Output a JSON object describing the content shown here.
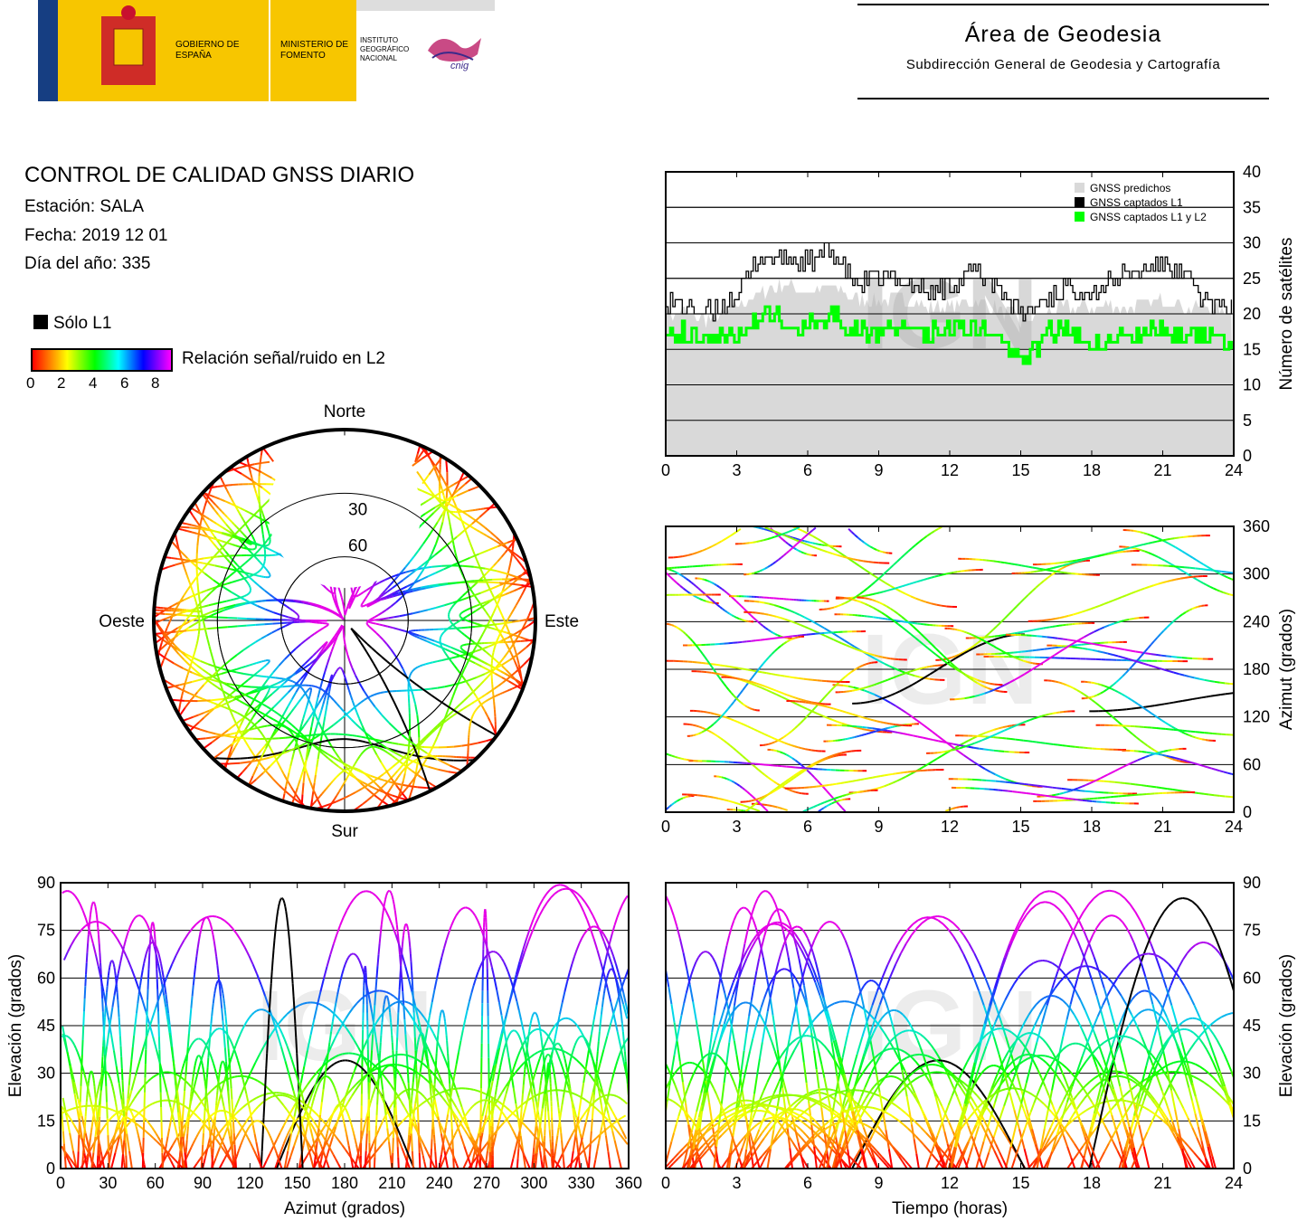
{
  "header": {
    "logo_gov": "GOBIERNO DE ESPAÑA",
    "logo_min": "MINISTERIO DE FOMENTO",
    "logo_ign": "INSTITUTO GEOGRÁFICO NACIONAL",
    "logo_cnig": "cnig",
    "title": "Área de Geodesia",
    "subtitle": "Subdirección General de Geodesia y Cartografía"
  },
  "report": {
    "title": "CONTROL DE CALIDAD GNSS DIARIO",
    "station": "Estación: SALA",
    "date": "Fecha: 2019 12 01",
    "doy": "Día del año: 335"
  },
  "legend": {
    "l1_only": "Sólo L1",
    "snr_title": "Relación señal/ruido en L2",
    "snr_ticks": [
      "0",
      "2",
      "4",
      "6",
      "8"
    ]
  },
  "watermark": "IGN",
  "colors": {
    "predicted": "#d9d9d9",
    "l1": "#000000",
    "l1l2": "#00ff00",
    "snr_low": "#ff0000",
    "snr_high": "#ff00ff"
  },
  "chart_data": [
    {
      "id": "sat_count",
      "type": "area",
      "xlabel": "",
      "ylabel": "Número de satélites",
      "xlim": [
        0,
        24
      ],
      "ylim": [
        0,
        40
      ],
      "xticks": [
        "0",
        "3",
        "6",
        "9",
        "12",
        "15",
        "18",
        "21",
        "24"
      ],
      "yticks": [
        "0",
        "5",
        "10",
        "15",
        "20",
        "25",
        "30",
        "35",
        "40"
      ],
      "grid": true,
      "legend_position": "top-right",
      "x": [
        0,
        1,
        2,
        3,
        4,
        5,
        6,
        7,
        8,
        9,
        10,
        11,
        12,
        13,
        14,
        15,
        16,
        17,
        18,
        19,
        20,
        21,
        22,
        23,
        24
      ],
      "series": [
        {
          "name": "GNSS predichos",
          "values": [
            20,
            20,
            19,
            21,
            23,
            24,
            23,
            24,
            22,
            22,
            22,
            21,
            21,
            22,
            21,
            19,
            20,
            21,
            21,
            21,
            21,
            22,
            21,
            21,
            20
          ]
        },
        {
          "name": "GNSS captados L1",
          "values": [
            22,
            21,
            20,
            23,
            28,
            28,
            27,
            29,
            24,
            25,
            25,
            23,
            24,
            26,
            24,
            20,
            22,
            24,
            23,
            25,
            26,
            27,
            25,
            21,
            21
          ]
        },
        {
          "name": "GNSS captados L1 y L2",
          "values": [
            18,
            17,
            17,
            17,
            20,
            19,
            18,
            20,
            18,
            17,
            19,
            17,
            18,
            18,
            17,
            13,
            17,
            18,
            16,
            17,
            17,
            18,
            17,
            17,
            16
          ]
        }
      ]
    },
    {
      "id": "skyplot",
      "type": "scatter",
      "labels": {
        "north": "Norte",
        "south": "Sur",
        "east": "Este",
        "west": "Oeste"
      },
      "ring_labels": [
        "30",
        "60"
      ]
    },
    {
      "id": "azimuth_time",
      "type": "scatter",
      "xlabel": "",
      "ylabel": "Azimut (grados)",
      "xlim": [
        0,
        24
      ],
      "ylim": [
        0,
        360
      ],
      "xticks": [
        "0",
        "3",
        "6",
        "9",
        "12",
        "15",
        "18",
        "21",
        "24"
      ],
      "yticks": [
        "0",
        "60",
        "120",
        "180",
        "240",
        "300",
        "360"
      ],
      "grid": true
    },
    {
      "id": "elev_azimuth",
      "type": "scatter",
      "xlabel": "Azimut (grados)",
      "ylabel": "Elevación (grados)",
      "xlim": [
        0,
        360
      ],
      "ylim": [
        0,
        90
      ],
      "xticks": [
        "0",
        "30",
        "60",
        "90",
        "120",
        "150",
        "180",
        "210",
        "240",
        "270",
        "300",
        "330",
        "360"
      ],
      "yticks": [
        "0",
        "15",
        "30",
        "45",
        "60",
        "75",
        "90"
      ],
      "grid": true
    },
    {
      "id": "elev_time",
      "type": "scatter",
      "xlabel": "Tiempo (horas)",
      "ylabel": "Elevación (grados)",
      "xlim": [
        0,
        24
      ],
      "ylim": [
        0,
        90
      ],
      "xticks": [
        "0",
        "3",
        "6",
        "9",
        "12",
        "15",
        "18",
        "21",
        "24"
      ],
      "yticks": [
        "0",
        "15",
        "30",
        "45",
        "60",
        "75",
        "90"
      ],
      "grid": true
    }
  ]
}
